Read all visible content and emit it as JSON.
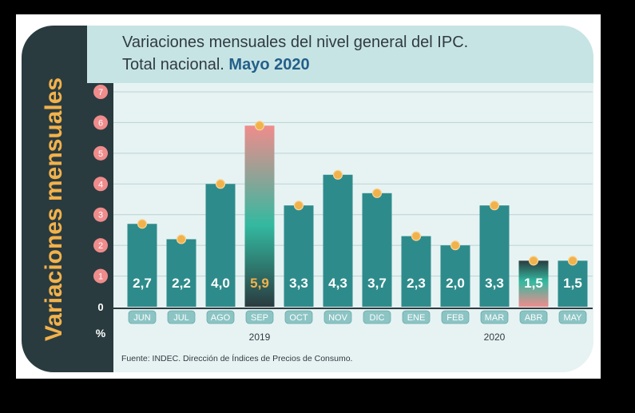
{
  "side_title": "Variaciones mensuales",
  "title_line1": "Variaciones mensuales del nivel general del IPC.",
  "title_line2_prefix": "Total nacional. ",
  "title_line2_accent": "Mayo 2020",
  "source": "Fuente: INDEC. Dirección de Índices de Precios de Consumo.",
  "unit_label": "%",
  "colors": {
    "bar": "#2e8b8b",
    "dot": "#f2b24b",
    "tick_circle": "#f08c8c",
    "axis_box": "#2a3b3f",
    "month_box": "#8cc4c4",
    "highlight_top": "#f08c8c",
    "highlight_mid": "#33b9a0",
    "highlight_bottom": "#2a3b3f",
    "label_text": "#ffffff",
    "label_highlight": "#f2b24b"
  },
  "chart_data": {
    "type": "bar",
    "categories": [
      "JUN",
      "JUL",
      "AGO",
      "SEP",
      "OCT",
      "NOV",
      "DIC",
      "ENE",
      "FEB",
      "MAR",
      "ABR",
      "MAY"
    ],
    "values": [
      2.7,
      2.2,
      4.0,
      5.9,
      3.3,
      4.3,
      3.7,
      2.3,
      2.0,
      3.3,
      1.5,
      1.5
    ],
    "value_labels": [
      "2,7",
      "2,2",
      "4,0",
      "5,9",
      "3,3",
      "4,3",
      "3,7",
      "2,3",
      "2,0",
      "3,3",
      "1,5",
      "1,5"
    ],
    "highlighted": [
      "SEP",
      "ABR"
    ],
    "year_groups": [
      {
        "label": "2019",
        "category": "SEP"
      },
      {
        "label": "2020",
        "category": "MAR"
      }
    ],
    "yticks": [
      "0",
      "1",
      "2",
      "3",
      "4",
      "5",
      "6",
      "7"
    ],
    "ylim": [
      0,
      7
    ],
    "grid": true,
    "title": "Variaciones mensuales del nivel general del IPC. Total nacional. Mayo 2020",
    "ylabel": "%"
  }
}
